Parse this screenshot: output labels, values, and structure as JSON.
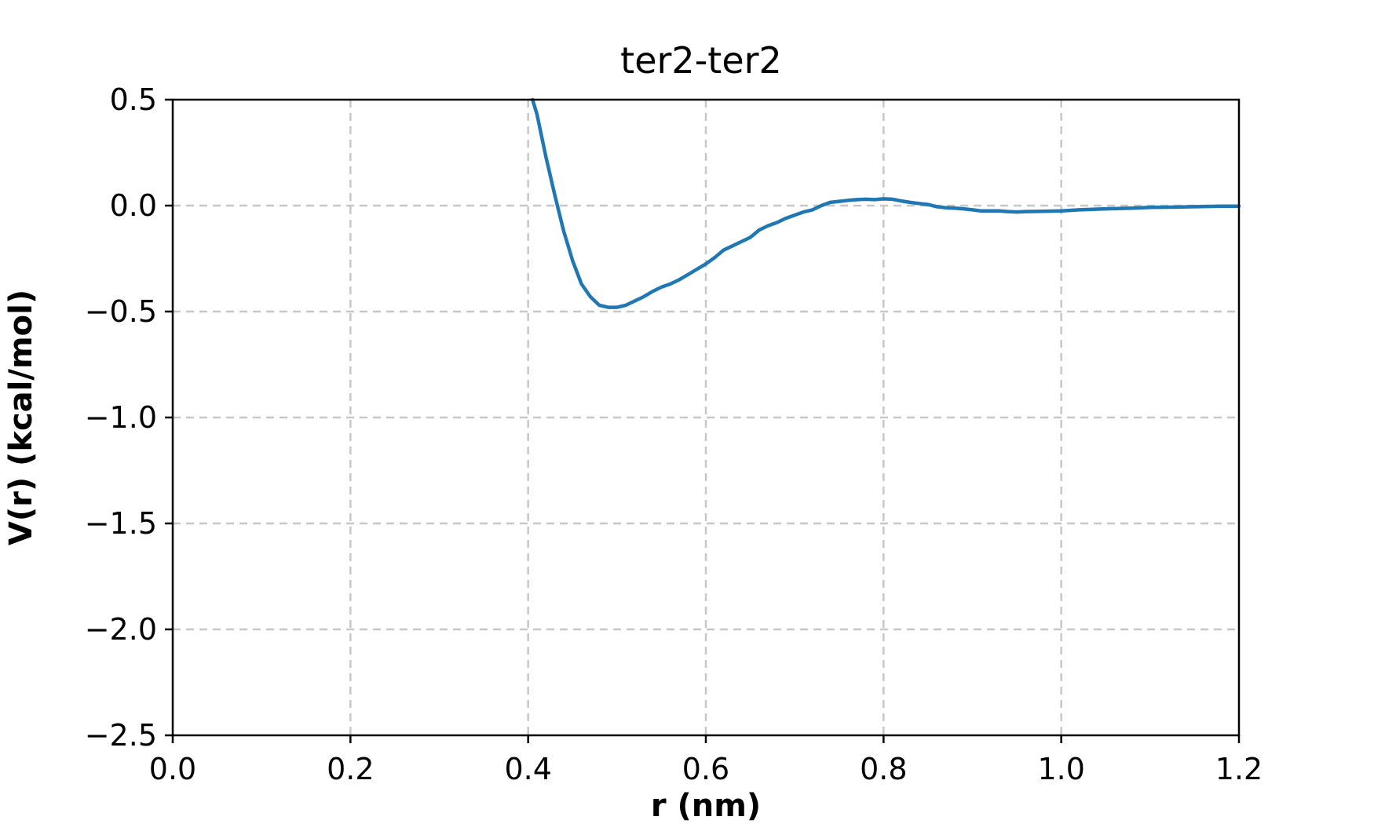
{
  "chart_data": {
    "type": "line",
    "title": "ter2-ter2",
    "xlabel": "r (nm)",
    "ylabel": "V(r) (kcal/mol)",
    "xlim": [
      0.0,
      1.2
    ],
    "ylim": [
      -2.5,
      0.5
    ],
    "xticks": [
      0.0,
      0.2,
      0.4,
      0.6,
      0.8,
      1.0,
      1.2
    ],
    "xtick_labels": [
      "0.0",
      "0.2",
      "0.4",
      "0.6",
      "0.8",
      "1.0",
      "1.2"
    ],
    "yticks": [
      0.5,
      0.0,
      -0.5,
      -1.0,
      -1.5,
      -2.0,
      -2.5
    ],
    "ytick_labels": [
      "0.5",
      "0.0",
      "−0.5",
      "−1.0",
      "−1.5",
      "−2.0",
      "−2.5"
    ],
    "grid": true,
    "grid_style": "dashed",
    "series": [
      {
        "color": "#1f77b4",
        "x": [
          0.405,
          0.41,
          0.42,
          0.43,
          0.44,
          0.45,
          0.46,
          0.47,
          0.48,
          0.49,
          0.5,
          0.51,
          0.52,
          0.53,
          0.54,
          0.55,
          0.56,
          0.57,
          0.58,
          0.59,
          0.6,
          0.61,
          0.62,
          0.63,
          0.64,
          0.65,
          0.66,
          0.67,
          0.68,
          0.69,
          0.7,
          0.71,
          0.72,
          0.73,
          0.74,
          0.75,
          0.76,
          0.77,
          0.78,
          0.79,
          0.8,
          0.81,
          0.82,
          0.83,
          0.84,
          0.85,
          0.86,
          0.87,
          0.88,
          0.89,
          0.9,
          0.91,
          0.92,
          0.93,
          0.94,
          0.95,
          0.96,
          0.98,
          1.0,
          1.02,
          1.05,
          1.08,
          1.1,
          1.13,
          1.15,
          1.18,
          1.2
        ],
        "y": [
          0.5,
          0.43,
          0.23,
          0.05,
          -0.12,
          -0.26,
          -0.37,
          -0.43,
          -0.47,
          -0.48,
          -0.48,
          -0.47,
          -0.45,
          -0.43,
          -0.405,
          -0.385,
          -0.37,
          -0.35,
          -0.325,
          -0.3,
          -0.275,
          -0.245,
          -0.21,
          -0.19,
          -0.17,
          -0.15,
          -0.115,
          -0.095,
          -0.08,
          -0.06,
          -0.045,
          -0.03,
          -0.02,
          0.0,
          0.015,
          0.02,
          0.025,
          0.028,
          0.03,
          0.028,
          0.032,
          0.03,
          0.022,
          0.015,
          0.01,
          0.005,
          -0.005,
          -0.01,
          -0.012,
          -0.015,
          -0.02,
          -0.025,
          -0.025,
          -0.025,
          -0.028,
          -0.03,
          -0.028,
          -0.027,
          -0.025,
          -0.02,
          -0.015,
          -0.012,
          -0.008,
          -0.007,
          -0.005,
          -0.003,
          -0.003
        ]
      }
    ]
  }
}
